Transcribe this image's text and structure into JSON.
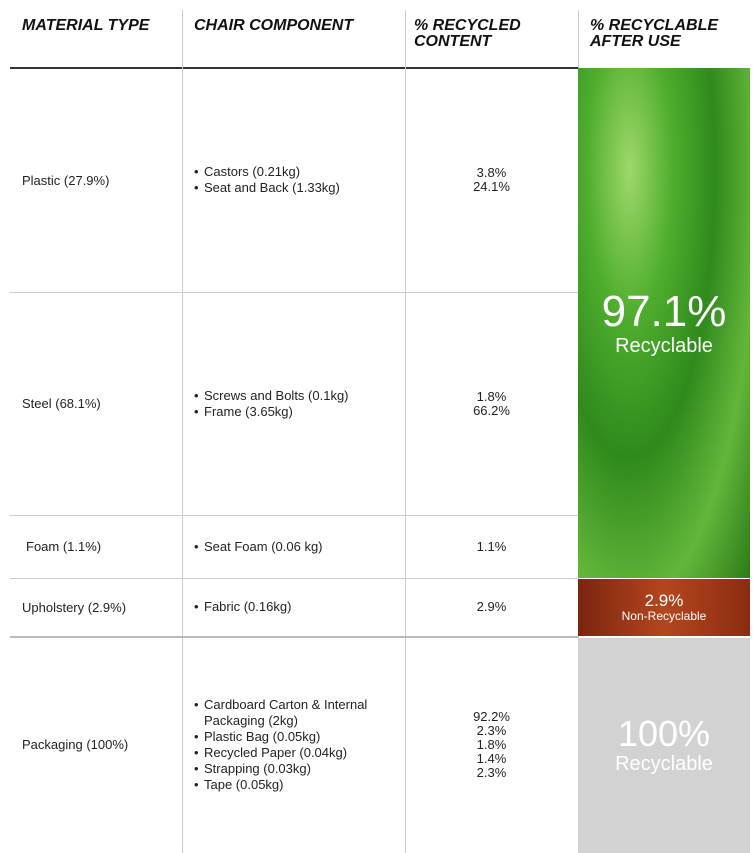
{
  "header": [
    "MATERIAL TYPE",
    "CHAIR COMPONENT",
    "% RECYCLED CONTENT",
    "% RECYCLABLE AFTER USE"
  ],
  "rows": [
    {
      "material": "Plastic (27.9%)",
      "components": [
        "Castors (0.21kg)",
        "Seat and Back (1.33kg)"
      ],
      "recycled": [
        "3.8%",
        "24.1%"
      ]
    },
    {
      "material": "Steel (68.1%)",
      "components": [
        "Screws and Bolts (0.1kg)",
        "Frame (3.65kg)"
      ],
      "recycled": [
        "1.8%",
        "66.2%"
      ]
    },
    {
      "material": "Foam (1.1%)",
      "components": [
        "Seat Foam  (0.06 kg)"
      ],
      "recycled": [
        "1.1%"
      ]
    },
    {
      "material": "Upholstery (2.9%)",
      "components": [
        "Fabric (0.16kg)"
      ],
      "recycled": [
        "2.9%"
      ]
    },
    {
      "material": "Packaging (100%)",
      "components": [
        "Cardboard Carton & Internal Packaging (2kg)",
        "Plastic Bag (0.05kg)",
        "Recycled Paper (0.04kg)",
        "Strapping (0.03kg)",
        "Tape (0.05kg)"
      ],
      "recycled": [
        "92.2%",
        "2.3%",
        "1.8%",
        "1.4%",
        "2.3%"
      ]
    }
  ],
  "recyclable": [
    {
      "value": "97.1%",
      "label": "Recyclable"
    },
    {
      "value": "2.9%",
      "label": "Non-Recyclable"
    },
    {
      "value": "100%",
      "label": "Recyclable"
    }
  ]
}
